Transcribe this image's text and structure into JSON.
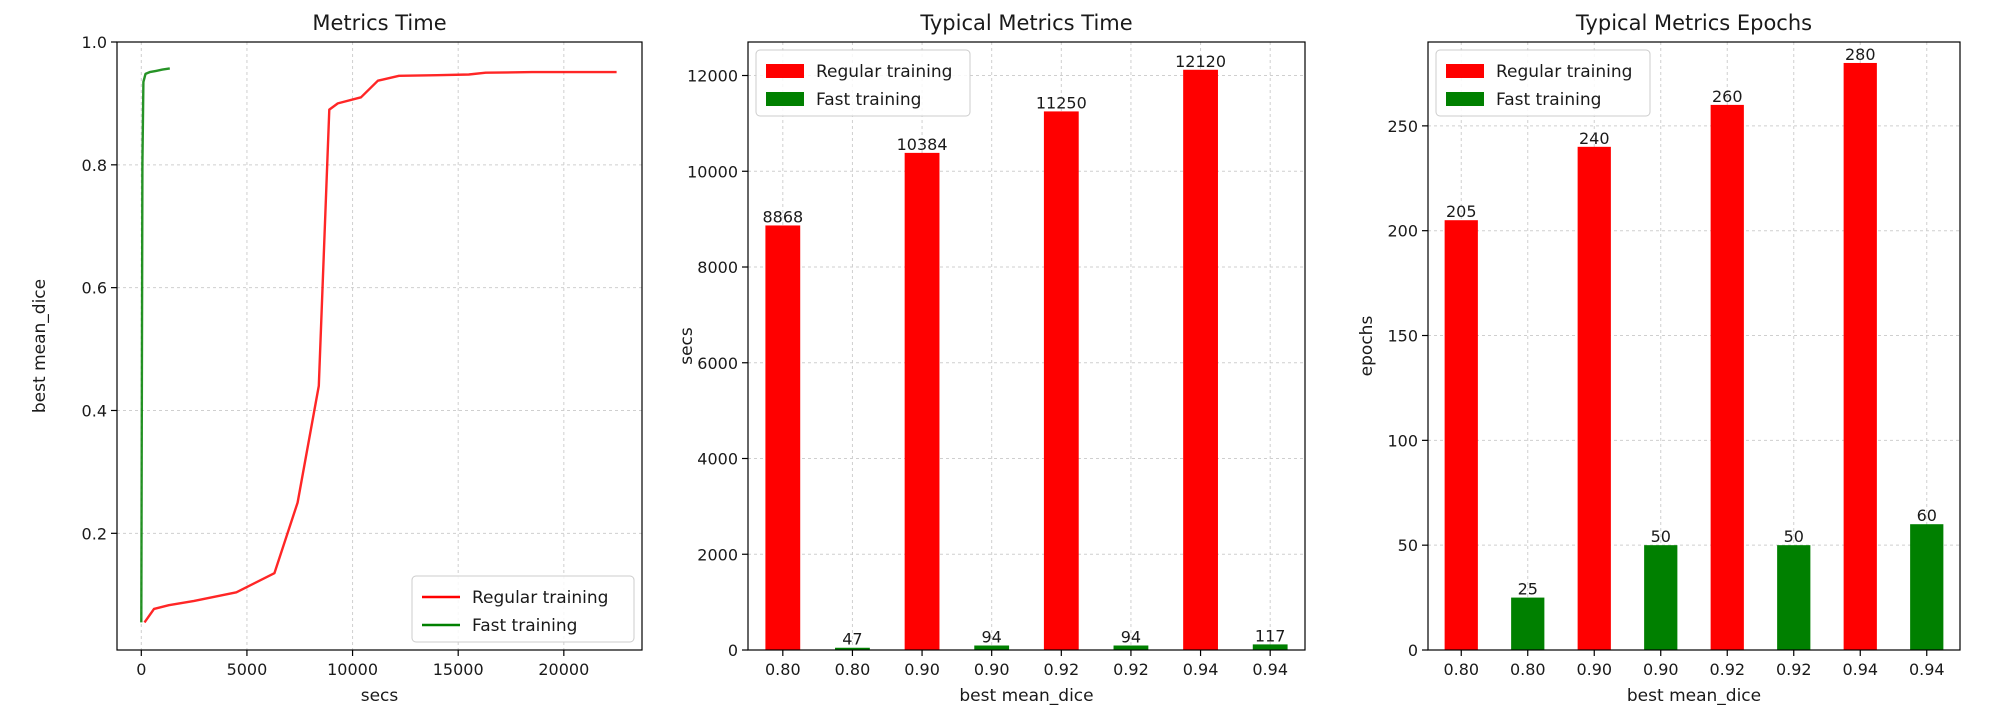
{
  "chart_data": [
    {
      "type": "line",
      "title": "Metrics Time",
      "xlabel": "secs",
      "ylabel": "best mean_dice",
      "xlim": [
        -1150,
        23700
      ],
      "ylim": [
        0.01,
        1.0
      ],
      "xticks": [
        0,
        5000,
        10000,
        15000,
        20000
      ],
      "yticks": [
        0.2,
        0.4,
        0.6,
        0.8,
        1.0
      ],
      "xtick_labels": [
        "0",
        "5000",
        "10000",
        "15000",
        "20000"
      ],
      "ytick_labels": [
        "0.2",
        "0.4",
        "0.6",
        "0.8",
        "1.0"
      ],
      "grid": true,
      "legend": "lower-right",
      "series": [
        {
          "name": "Regular training",
          "color": "#ff0000",
          "x": [
            150,
            600,
            1300,
            2500,
            4500,
            6300,
            7400,
            8400,
            8900,
            9300,
            10400,
            11200,
            12200,
            14000,
            15500,
            16300,
            18500,
            22500
          ],
          "y": [
            0.055,
            0.077,
            0.083,
            0.09,
            0.104,
            0.135,
            0.25,
            0.44,
            0.89,
            0.9,
            0.91,
            0.937,
            0.945,
            0.946,
            0.947,
            0.95,
            0.951,
            0.951
          ]
        },
        {
          "name": "Fast training",
          "color": "#008000",
          "x": [
            0,
            50,
            100,
            200,
            400,
            700,
            1000,
            1350
          ],
          "y": [
            0.055,
            0.8,
            0.935,
            0.948,
            0.951,
            0.953,
            0.955,
            0.957
          ]
        }
      ]
    },
    {
      "type": "bar",
      "title": "Typical Metrics Time",
      "xlabel": "best mean_dice",
      "ylabel": "secs",
      "ylim": [
        0,
        12700
      ],
      "yticks": [
        0,
        2000,
        4000,
        6000,
        8000,
        10000,
        12000
      ],
      "ytick_labels": [
        "0",
        "2000",
        "4000",
        "6000",
        "8000",
        "10000",
        "12000"
      ],
      "categories": [
        "0.80",
        "0.80",
        "0.90",
        "0.90",
        "0.92",
        "0.92",
        "0.94",
        "0.94"
      ],
      "values": [
        8868,
        47,
        10384,
        94,
        11250,
        94,
        12120,
        117
      ],
      "value_labels": [
        "8868",
        "47",
        "10384",
        "94",
        "11250",
        "94",
        "12120",
        "117"
      ],
      "bar_series": [
        "Regular training",
        "Fast training",
        "Regular training",
        "Fast training",
        "Regular training",
        "Fast training",
        "Regular training",
        "Fast training"
      ],
      "grid": true,
      "legend": "top-left",
      "legend_entries": [
        {
          "name": "Regular training",
          "color": "#ff0000"
        },
        {
          "name": "Fast training",
          "color": "#008000"
        }
      ]
    },
    {
      "type": "bar",
      "title": "Typical Metrics Epochs",
      "xlabel": "best mean_dice",
      "ylabel": "epochs",
      "ylim": [
        0,
        290
      ],
      "yticks": [
        0,
        50,
        100,
        150,
        200,
        250
      ],
      "ytick_labels": [
        "0",
        "50",
        "100",
        "150",
        "200",
        "250"
      ],
      "categories": [
        "0.80",
        "0.80",
        "0.90",
        "0.90",
        "0.92",
        "0.92",
        "0.94",
        "0.94"
      ],
      "values": [
        205,
        25,
        240,
        50,
        260,
        50,
        280,
        60
      ],
      "value_labels": [
        "205",
        "25",
        "240",
        "50",
        "260",
        "50",
        "280",
        "60"
      ],
      "bar_series": [
        "Regular training",
        "Fast training",
        "Regular training",
        "Fast training",
        "Regular training",
        "Fast training",
        "Regular training",
        "Fast training"
      ],
      "grid": true,
      "legend": "top-left",
      "legend_entries": [
        {
          "name": "Regular training",
          "color": "#ff0000"
        },
        {
          "name": "Fast training",
          "color": "#008000"
        }
      ]
    }
  ]
}
